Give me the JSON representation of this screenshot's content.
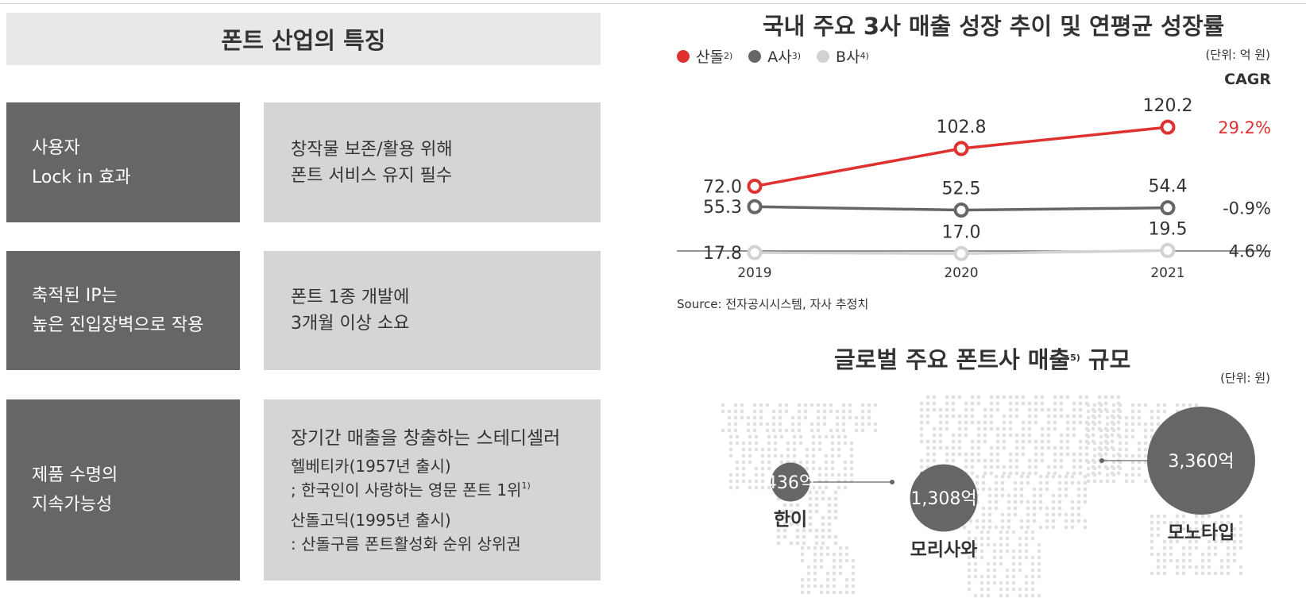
{
  "left_panel": {
    "title": "폰트 산업의 특징",
    "rows": [
      {
        "key": [
          "사용자",
          "Lock in 효과"
        ],
        "value": [
          "창작물 보존/활용 위해",
          "폰트 서비스 유지 필수"
        ]
      },
      {
        "key": [
          "축적된 IP는",
          "높은 진입장벽으로 작용"
        ],
        "value": [
          "폰트 1종 개발에",
          "3개월 이상 소요"
        ]
      },
      {
        "key": [
          "제품 수명의",
          "지속가능성"
        ],
        "heading": "장기간 매출을 창출하는 스테디셀러",
        "items": [
          {
            "line1": "헬베티카(1957년 출시)",
            "line2": "; 한국인이 사랑하는 영문 폰트 1위",
            "sup": "1)"
          },
          {
            "line1": "산돌고딕(1995년 출시)",
            "line2": ": 산돌구름 폰트활성화 순위 상위권"
          }
        ]
      }
    ]
  },
  "chart_data": [
    {
      "type": "line",
      "title": "국내 주요 3사 매출 성장 추이 및 연평균 성장률",
      "unit": "(단위: 억 원)",
      "x": [
        "2019",
        "2020",
        "2021"
      ],
      "series": [
        {
          "name": "산돌",
          "sup": "2)",
          "color": "#e03131",
          "values": [
            72.0,
            102.8,
            120.2
          ],
          "labels": [
            "72.0",
            "102.8",
            "120.2"
          ],
          "cagr": "29.2%"
        },
        {
          "name": "A사",
          "sup": "3)",
          "color": "#666666",
          "values": [
            55.3,
            52.5,
            54.4
          ],
          "labels": [
            "55.3",
            "52.5",
            "54.4"
          ],
          "cagr": "-0.9%"
        },
        {
          "name": "B사",
          "sup": "4)",
          "color": "#d2d2d2",
          "values": [
            17.8,
            17.0,
            19.5
          ],
          "labels": [
            "17.8",
            "17.0",
            "19.5"
          ],
          "cagr": "4.6%"
        }
      ],
      "cagr_label": "CAGR",
      "source": "Source: 전자공시시스템, 자사 추정치"
    },
    {
      "type": "bubble-map",
      "title": "글로벌 주요 폰트사 매출",
      "title_sup": "5)",
      "title_suffix": "규모",
      "unit": "(단위: 원)",
      "companies": [
        {
          "name": "한이",
          "value_text": "436억",
          "value": 436
        },
        {
          "name": "모리사와",
          "value_text": "1,308억",
          "value": 1308
        },
        {
          "name": "모노타입",
          "value_text": "3,360억",
          "value": 3360
        }
      ]
    }
  ],
  "colors": {
    "accent_red": "#e03131",
    "dark_gray": "#666666",
    "light_gray": "#d2d2d2",
    "panel_gray": "#d5d5d6",
    "title_bg": "#e8e8ea"
  }
}
